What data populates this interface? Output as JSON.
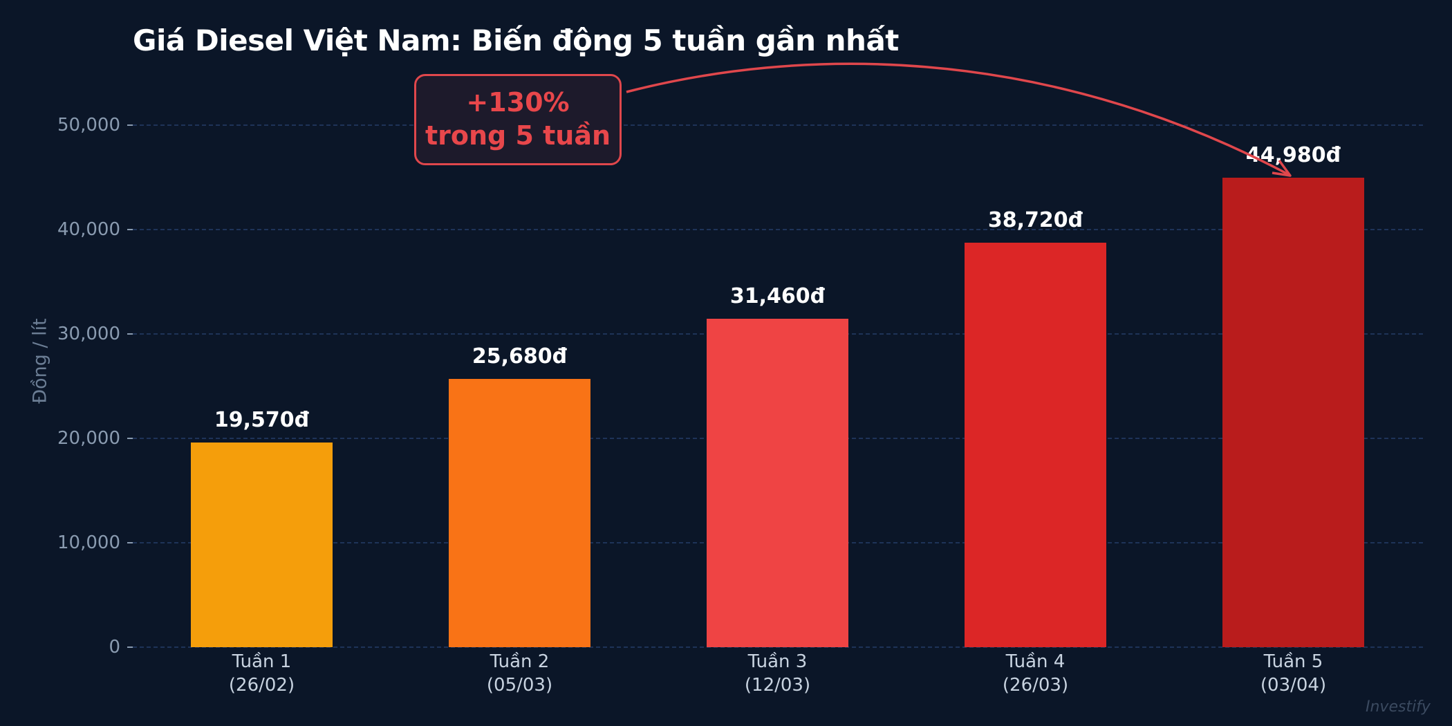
{
  "chart_data": {
    "type": "bar",
    "title": "Giá Diesel Việt Nam: Biến động 5 tuần gần nhất",
    "xlabel": "",
    "ylabel": "Đồng / lít",
    "ylim": [
      0,
      50000
    ],
    "yticks": [
      "0",
      "10,000",
      "20,000",
      "30,000",
      "40,000",
      "50,000"
    ],
    "grid": true,
    "categories": [
      "Tuần 1 (26/02)",
      "Tuần 2 (05/03)",
      "Tuần 3 (12/03)",
      "Tuần 4 (26/03)",
      "Tuần 5 (03/04)"
    ],
    "values": [
      19570,
      25680,
      31460,
      38720,
      44980
    ],
    "data_labels": [
      "19,570đ",
      "25,680đ",
      "31,460đ",
      "38,720đ",
      "44,980đ"
    ],
    "bar_colors": [
      "#f59e0b",
      "#f97316",
      "#ef4444",
      "#dc2626",
      "#b91c1c"
    ],
    "annotation": {
      "line1": "+130%",
      "line2": "trong 5 tuần",
      "color": "#e8474b",
      "arrow_target": "Tuần 5 (03/04)"
    }
  },
  "x_labels": [
    {
      "week": "Tuần 1",
      "date": "(26/02)"
    },
    {
      "week": "Tuần 2",
      "date": "(05/03)"
    },
    {
      "week": "Tuần 3",
      "date": "(12/03)"
    },
    {
      "week": "Tuần 4",
      "date": "(26/03)"
    },
    {
      "week": "Tuần 5",
      "date": "(03/04)"
    }
  ],
  "watermark": "Investify",
  "colors": {
    "background": "#0b1628",
    "grid": "#1e3358",
    "accent": "#e8474b"
  }
}
